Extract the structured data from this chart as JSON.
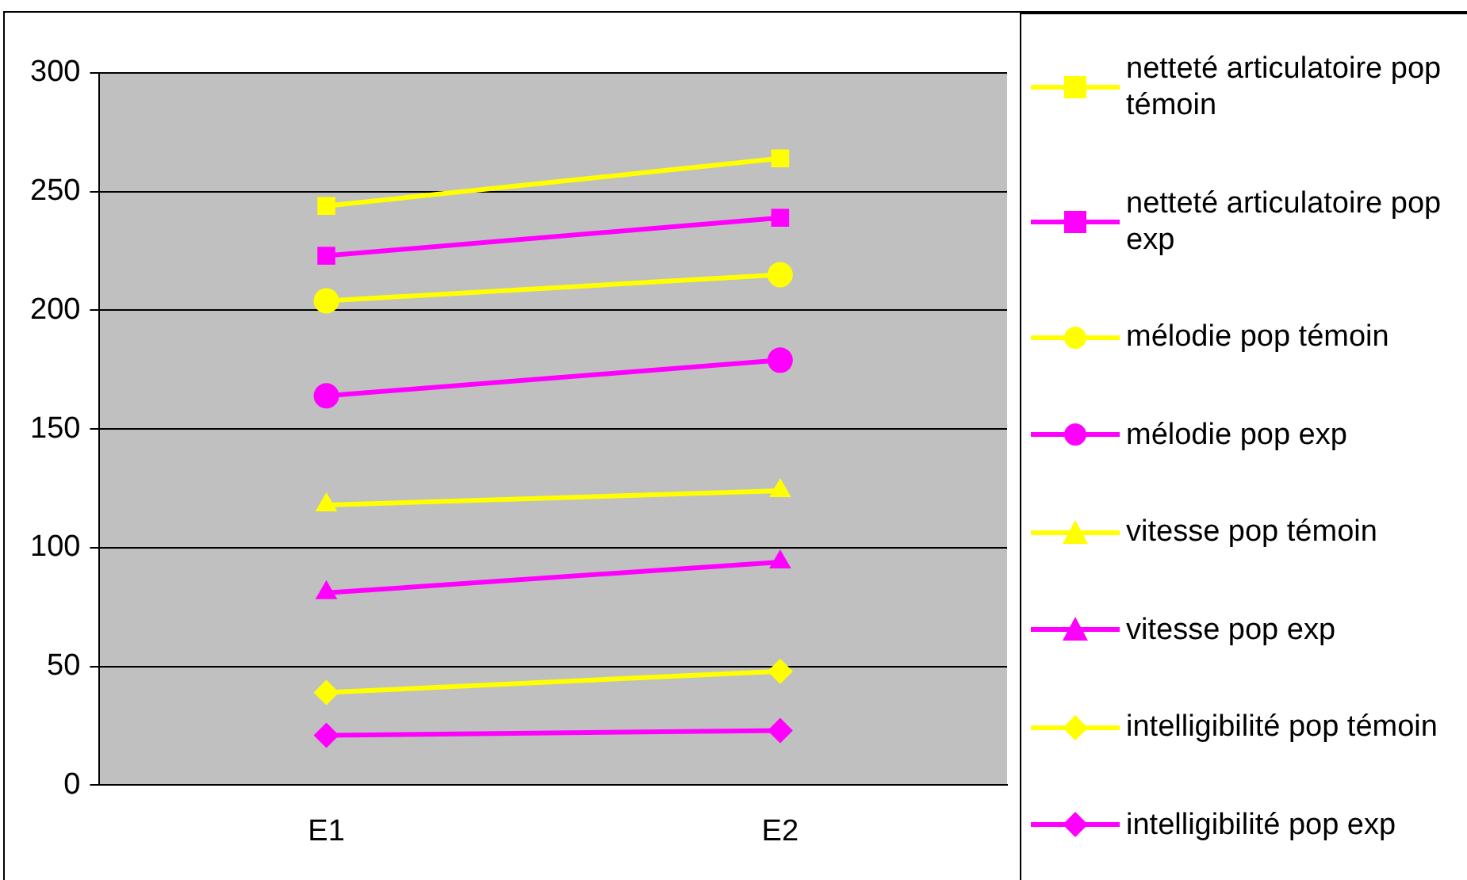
{
  "chart_data": {
    "type": "line",
    "categories": [
      "E1",
      "E2"
    ],
    "series": [
      {
        "name": "netteté articulatoire pop témoin",
        "color": "#ffff00",
        "marker": "square",
        "values": [
          244,
          264
        ]
      },
      {
        "name": "netteté articulatoire pop exp",
        "color": "#ff00ff",
        "marker": "square",
        "values": [
          223,
          239
        ]
      },
      {
        "name": "mélodie pop témoin",
        "color": "#ffff00",
        "marker": "circle",
        "values": [
          204,
          215
        ]
      },
      {
        "name": "mélodie pop exp",
        "color": "#ff00ff",
        "marker": "circle",
        "values": [
          164,
          179
        ]
      },
      {
        "name": "vitesse pop témoin",
        "color": "#ffff00",
        "marker": "triangle",
        "values": [
          118,
          124
        ]
      },
      {
        "name": "vitesse pop exp",
        "color": "#ff00ff",
        "marker": "triangle",
        "values": [
          81,
          94
        ]
      },
      {
        "name": "intelligibilité pop témoin",
        "color": "#ffff00",
        "marker": "diamond",
        "values": [
          39,
          48
        ]
      },
      {
        "name": "intelligibilité pop exp",
        "color": "#ff00ff",
        "marker": "diamond",
        "values": [
          21,
          23
        ]
      }
    ],
    "ylim": [
      0,
      300
    ],
    "yticks": [
      0,
      50,
      100,
      150,
      200,
      250,
      300
    ],
    "grid": "y",
    "legend": "right",
    "line_style": "solid"
  }
}
